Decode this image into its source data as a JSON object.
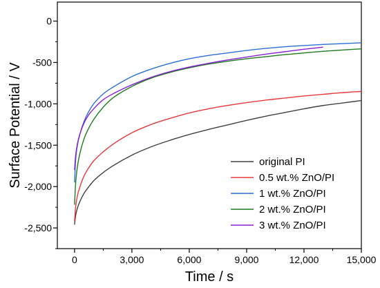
{
  "chart_data": {
    "type": "line",
    "xlabel": "Time / s",
    "ylabel": "Surface Potential / V",
    "xlim": [
      -900,
      15000
    ],
    "ylim": [
      -2750,
      230
    ],
    "x_ticks": [
      0,
      3000,
      6000,
      9000,
      12000,
      15000
    ],
    "x_tick_labels": [
      "0",
      "3,000",
      "6,000",
      "9,000",
      "12,000",
      "15,000"
    ],
    "y_ticks": [
      0,
      -500,
      -1000,
      -1500,
      -2000,
      -2500
    ],
    "y_tick_labels": [
      "0",
      "-500",
      "-1,000",
      "-1,500",
      "-2,000",
      "-2,500"
    ],
    "grid": false,
    "legend_position": "bottom-right",
    "series": [
      {
        "name": "original PI",
        "color": "#404040",
        "x": [
          0,
          50,
          150,
          300,
          500,
          750,
          1000,
          1500,
          2000,
          3000,
          4000,
          5000,
          6000,
          7000,
          8000,
          9000,
          10000,
          11000,
          12000,
          13000,
          14000,
          15000
        ],
        "y": [
          -2460,
          -2360,
          -2260,
          -2170,
          -2080,
          -2000,
          -1930,
          -1830,
          -1750,
          -1620,
          -1520,
          -1440,
          -1370,
          -1310,
          -1255,
          -1200,
          -1150,
          -1105,
          -1060,
          -1020,
          -990,
          -960
        ]
      },
      {
        "name": "0.5 wt.% ZnO/PI",
        "color": "#e8383d",
        "x": [
          0,
          50,
          150,
          300,
          500,
          750,
          1000,
          1500,
          2000,
          3000,
          4000,
          5000,
          6000,
          7000,
          8000,
          9000,
          10000,
          11000,
          12000,
          13000,
          14000,
          15000
        ],
        "y": [
          -2420,
          -2260,
          -2110,
          -1990,
          -1870,
          -1770,
          -1690,
          -1580,
          -1490,
          -1350,
          -1250,
          -1175,
          -1110,
          -1060,
          -1020,
          -985,
          -955,
          -930,
          -905,
          -885,
          -865,
          -850
        ]
      },
      {
        "name": "1 wt.% ZnO/PI",
        "color": "#2b6fd6",
        "x": [
          0,
          50,
          150,
          300,
          500,
          750,
          1000,
          1500,
          2000,
          3000,
          4000,
          5000,
          6000,
          7000,
          8000,
          9000,
          10000,
          11000,
          12000,
          13000,
          14000,
          15000
        ],
        "y": [
          -1950,
          -1700,
          -1500,
          -1350,
          -1210,
          -1090,
          -1000,
          -880,
          -800,
          -670,
          -580,
          -510,
          -455,
          -415,
          -385,
          -355,
          -330,
          -310,
          -295,
          -282,
          -272,
          -262
        ]
      },
      {
        "name": "2 wt.% ZnO/PI",
        "color": "#1e7a1e",
        "x": [
          0,
          50,
          150,
          300,
          500,
          750,
          1000,
          1500,
          2000,
          3000,
          4000,
          5000,
          6000,
          7000,
          8000,
          9000,
          10000,
          11000,
          12000,
          13000,
          14000,
          15000
        ],
        "y": [
          -2220,
          -1980,
          -1760,
          -1580,
          -1420,
          -1290,
          -1190,
          -1040,
          -930,
          -790,
          -690,
          -620,
          -565,
          -520,
          -485,
          -455,
          -430,
          -405,
          -385,
          -365,
          -350,
          -335
        ]
      },
      {
        "name": "3 wt.% ZnO/PI",
        "color": "#8a1ed6",
        "x": [
          0,
          50,
          150,
          300,
          500,
          750,
          1000,
          1500,
          2000,
          3000,
          4000,
          5000,
          6000,
          7000,
          8000,
          9000,
          10000,
          11000,
          12000,
          13000
        ],
        "y": [
          -1800,
          -1640,
          -1480,
          -1350,
          -1230,
          -1130,
          -1060,
          -950,
          -880,
          -770,
          -680,
          -610,
          -555,
          -510,
          -470,
          -435,
          -400,
          -370,
          -340,
          -315
        ]
      }
    ]
  }
}
